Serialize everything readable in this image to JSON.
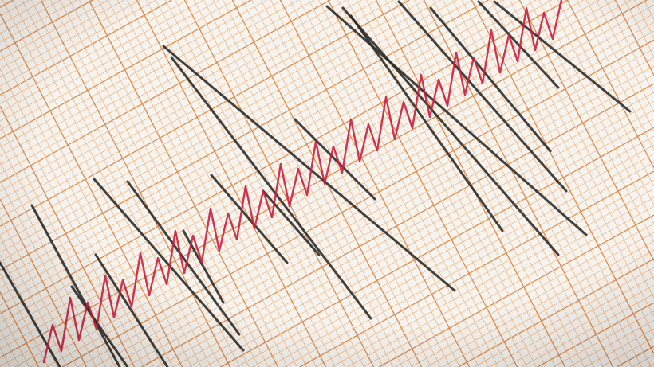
{
  "image": {
    "subject": "seismograph",
    "colors": {
      "paper": "#f7f4ef",
      "grid_minor": "#f0b98a",
      "grid_major": "#e08a4a",
      "trace_black": "#2b2e2c",
      "trace_red": "#c8203f"
    }
  }
}
